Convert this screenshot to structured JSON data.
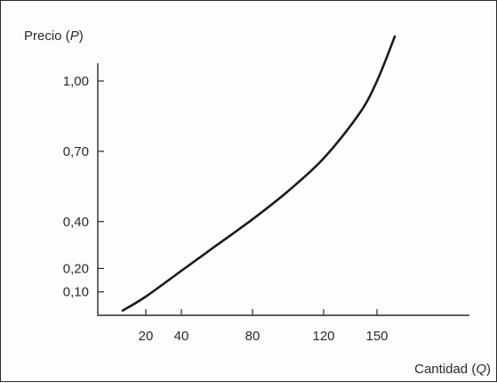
{
  "chart_data": {
    "type": "line",
    "ylabel_main": "Precio (",
    "ylabel_var": "P",
    "ylabel_close": ")",
    "xlabel_main": "Cantidad (",
    "xlabel_var": "Q",
    "xlabel_close": ")",
    "x_ticks": [
      {
        "value": 20,
        "label": "20"
      },
      {
        "value": 40,
        "label": "40"
      },
      {
        "value": 80,
        "label": "80"
      },
      {
        "value": 120,
        "label": "120"
      },
      {
        "value": 150,
        "label": "150"
      }
    ],
    "y_ticks": [
      {
        "value": 0.1,
        "label": "0,10"
      },
      {
        "value": 0.2,
        "label": "0,20"
      },
      {
        "value": 0.4,
        "label": "0,40"
      },
      {
        "value": 0.7,
        "label": "0,70"
      },
      {
        "value": 1.0,
        "label": "1,00"
      }
    ],
    "xlim": [
      0,
      180
    ],
    "ylim": [
      0,
      1.2
    ],
    "grid": false,
    "series": [
      {
        "x": [
          7,
          20,
          40,
          60,
          80,
          100,
          120,
          140,
          150,
          160
        ],
        "y": [
          0.02,
          0.08,
          0.19,
          0.3,
          0.41,
          0.53,
          0.67,
          0.86,
          1.0,
          1.19
        ]
      }
    ]
  }
}
